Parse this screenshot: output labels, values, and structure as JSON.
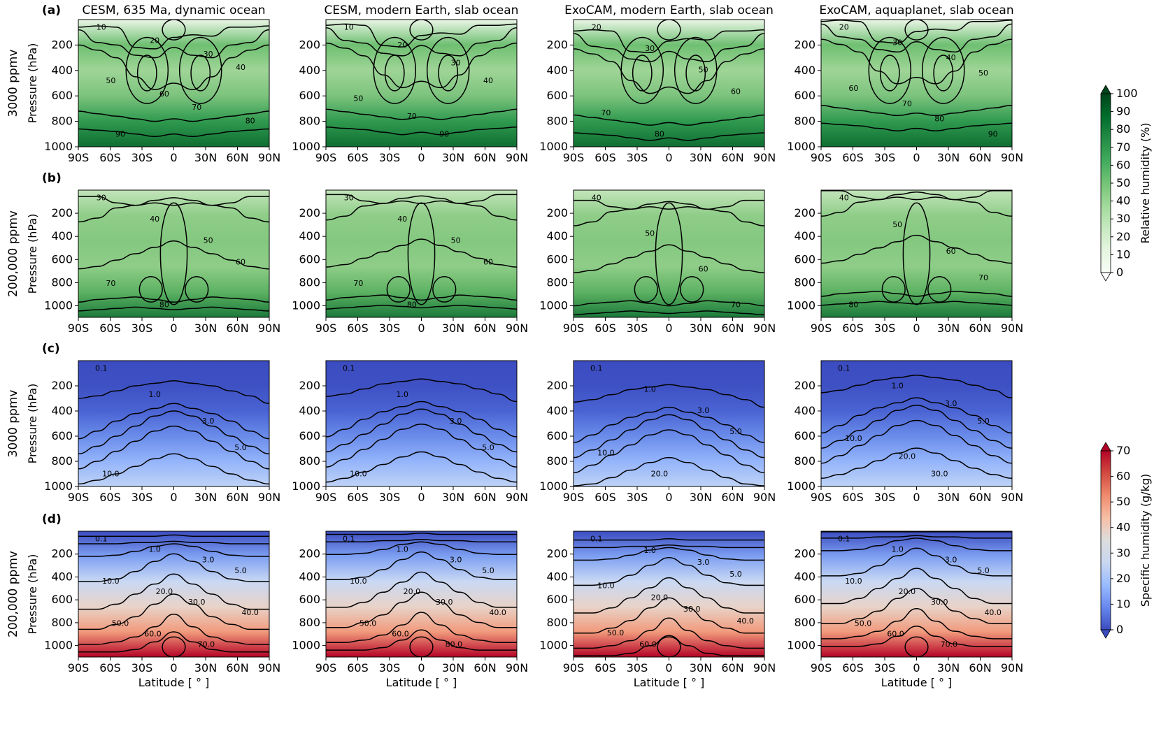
{
  "figure": {
    "row_labels": [
      "(a)",
      "(b)",
      "(c)",
      "(d)"
    ],
    "row_ylabels": [
      "3000 ppmv",
      "200,000 ppmv",
      "3000 ppmv",
      "200,000 ppmv"
    ],
    "column_titles": [
      "CESM, 635 Ma, dynamic ocean",
      "CESM, modern Earth, slab ocean",
      "ExoCAM, modern Earth, slab ocean",
      "ExoCAM, aquaplanet, slab ocean"
    ],
    "ylabel": "Pressure (hPa)",
    "xlabel": "Latitude [$^\\circ$]",
    "xlabel_display": "Latitude [ ° ]",
    "x_ticks": [
      "90S",
      "60S",
      "30S",
      "0",
      "30N",
      "60N",
      "90N"
    ],
    "y_ticks_3000": [
      "200",
      "400",
      "600",
      "800",
      "1000"
    ],
    "y_ticks_200000": [
      "200",
      "400",
      "600",
      "800",
      "1000"
    ],
    "colorbar_rh": {
      "label": "Relative humidity (%)",
      "ticks": [
        "0",
        "10",
        "20",
        "30",
        "40",
        "50",
        "60",
        "70",
        "80",
        "90",
        "100"
      ],
      "colors": [
        "#f7fcf5",
        "#e5f5e0",
        "#c7e9c0",
        "#a1d99b",
        "#74c476",
        "#41ab5d",
        "#238b45",
        "#006d2c",
        "#00441b"
      ]
    },
    "colorbar_q": {
      "label": "Specific humidity (g/kg)",
      "ticks": [
        "0",
        "10",
        "20",
        "30",
        "40",
        "50",
        "60",
        "70"
      ],
      "colors": [
        "#3b4cc0",
        "#6788ee",
        "#9abbff",
        "#c9d7f0",
        "#dddddd",
        "#f6bfa6",
        "#f08b6e",
        "#d24b40",
        "#b40426"
      ]
    }
  },
  "chart_data": [
    {
      "type": "heatmap",
      "row": "a",
      "variable": "Relative humidity (%)",
      "co2": "3000 ppmv",
      "x": "latitude",
      "xlim": [
        -90,
        90
      ],
      "ylim": [
        1000,
        0
      ],
      "panels": [
        {
          "title": "CESM, 635 Ma, dynamic ocean",
          "contour_labels": [
            "10",
            "20",
            "30",
            "40",
            "50",
            "60",
            "70",
            "80",
            "90"
          ]
        },
        {
          "title": "CESM, modern Earth, slab ocean",
          "contour_labels": [
            "10",
            "20",
            "30",
            "40",
            "50",
            "70",
            "90"
          ]
        },
        {
          "title": "ExoCAM, modern Earth, slab ocean",
          "contour_labels": [
            "20",
            "30",
            "50",
            "60",
            "70",
            "80"
          ]
        },
        {
          "title": "ExoCAM, aquaplanet, slab ocean",
          "contour_labels": [
            "20",
            "30",
            "40",
            "50",
            "60",
            "70",
            "80",
            "90"
          ]
        }
      ]
    },
    {
      "type": "heatmap",
      "row": "b",
      "variable": "Relative humidity (%)",
      "co2": "200,000 ppmv",
      "x": "latitude",
      "xlim": [
        -90,
        90
      ],
      "ylim": [
        1100,
        0
      ],
      "panels": [
        {
          "title": "CESM, 635 Ma, dynamic ocean",
          "contour_labels": [
            "30",
            "40",
            "50",
            "60",
            "70",
            "80"
          ]
        },
        {
          "title": "CESM, modern Earth, slab ocean",
          "contour_labels": [
            "30",
            "40",
            "50",
            "60",
            "70",
            "80"
          ]
        },
        {
          "title": "ExoCAM, modern Earth, slab ocean",
          "contour_labels": [
            "40",
            "50",
            "60",
            "70"
          ]
        },
        {
          "title": "ExoCAM, aquaplanet, slab ocean",
          "contour_labels": [
            "40",
            "50",
            "60",
            "70",
            "80"
          ]
        }
      ]
    },
    {
      "type": "heatmap",
      "row": "c",
      "variable": "Specific humidity (g/kg)",
      "co2": "3000 ppmv",
      "x": "latitude",
      "xlim": [
        -90,
        90
      ],
      "ylim": [
        1000,
        0
      ],
      "panels": [
        {
          "title": "CESM, 635 Ma, dynamic ocean",
          "contour_labels": [
            "0.1",
            "1.0",
            "3.0",
            "5.0",
            "10.0"
          ]
        },
        {
          "title": "CESM, modern Earth, slab ocean",
          "contour_labels": [
            "0.1",
            "1.0",
            "3.0",
            "5.0",
            "10.0"
          ]
        },
        {
          "title": "ExoCAM, modern Earth, slab ocean",
          "contour_labels": [
            "0.1",
            "1.0",
            "3.0",
            "5.0",
            "10.0",
            "20.0"
          ]
        },
        {
          "title": "ExoCAM, aquaplanet, slab ocean",
          "contour_labels": [
            "0.1",
            "1.0",
            "3.0",
            "5.0",
            "10.0",
            "20.0",
            "30.0"
          ]
        }
      ]
    },
    {
      "type": "heatmap",
      "row": "d",
      "variable": "Specific humidity (g/kg)",
      "co2": "200,000 ppmv",
      "x": "latitude",
      "xlim": [
        -90,
        90
      ],
      "ylim": [
        1100,
        0
      ],
      "panels": [
        {
          "title": "CESM, 635 Ma, dynamic ocean",
          "contour_labels": [
            "0.1",
            "1.0",
            "3.0",
            "5.0",
            "10.0",
            "20.0",
            "30.0",
            "40.0",
            "50.0",
            "60.0",
            "70.0"
          ]
        },
        {
          "title": "CESM, modern Earth, slab ocean",
          "contour_labels": [
            "0.1",
            "1.0",
            "3.0",
            "5.0",
            "10.0",
            "20.0",
            "30.0",
            "40.0",
            "50.0",
            "60.0",
            "80.0"
          ]
        },
        {
          "title": "ExoCAM, modern Earth, slab ocean",
          "contour_labels": [
            "0.1",
            "1.0",
            "3.0",
            "5.0",
            "10.0",
            "20.0",
            "30.0",
            "40.0",
            "50.0",
            "60.0"
          ]
        },
        {
          "title": "ExoCAM, aquaplanet, slab ocean",
          "contour_labels": [
            "0.1",
            "1.0",
            "3.0",
            "5.0",
            "10.0",
            "20.0",
            "30.0",
            "40.0",
            "50.0",
            "60.0",
            "70.0"
          ]
        }
      ]
    }
  ]
}
